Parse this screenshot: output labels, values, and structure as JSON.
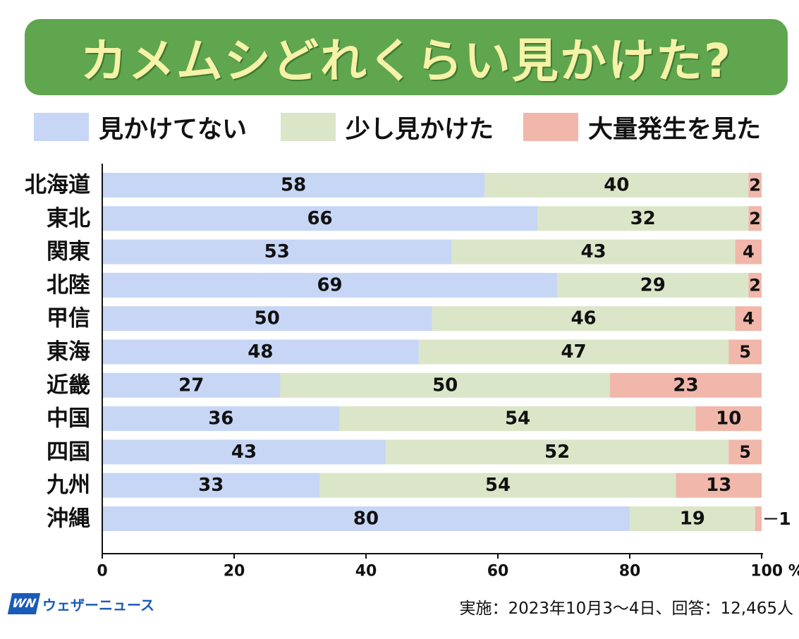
{
  "title": "カメムシどれくらい見かけた?",
  "legend": [
    {
      "label": "見かけてない",
      "color": "#c7d6f5"
    },
    {
      "label": "少し見かけた",
      "color": "#dbe6c9"
    },
    {
      "label": "大量発生を見た",
      "color": "#f0b7aa"
    }
  ],
  "chart_data": {
    "type": "bar",
    "orientation": "horizontal",
    "stacked": true,
    "categories": [
      "北海道",
      "東北",
      "関東",
      "北陸",
      "甲信",
      "東海",
      "近畿",
      "中国",
      "四国",
      "九州",
      "沖縄"
    ],
    "series": [
      {
        "name": "見かけてない",
        "values": [
          58,
          66,
          53,
          69,
          50,
          48,
          27,
          36,
          43,
          33,
          80
        ]
      },
      {
        "name": "少し見かけた",
        "values": [
          40,
          32,
          43,
          29,
          46,
          47,
          50,
          54,
          52,
          54,
          19
        ]
      },
      {
        "name": "大量発生を見た",
        "values": [
          2,
          2,
          4,
          2,
          4,
          5,
          23,
          10,
          5,
          13,
          1
        ]
      }
    ],
    "xlim": [
      0,
      100
    ],
    "x_ticks": [
      "0",
      "20",
      "40",
      "60",
      "80",
      "100 %"
    ],
    "legend_position": "top",
    "grid": false
  },
  "footer": {
    "logo_mark": "WN",
    "logo_text": "ウェザーニュース",
    "note": "実施：2023年10月3～4日、回答：12,465人"
  }
}
